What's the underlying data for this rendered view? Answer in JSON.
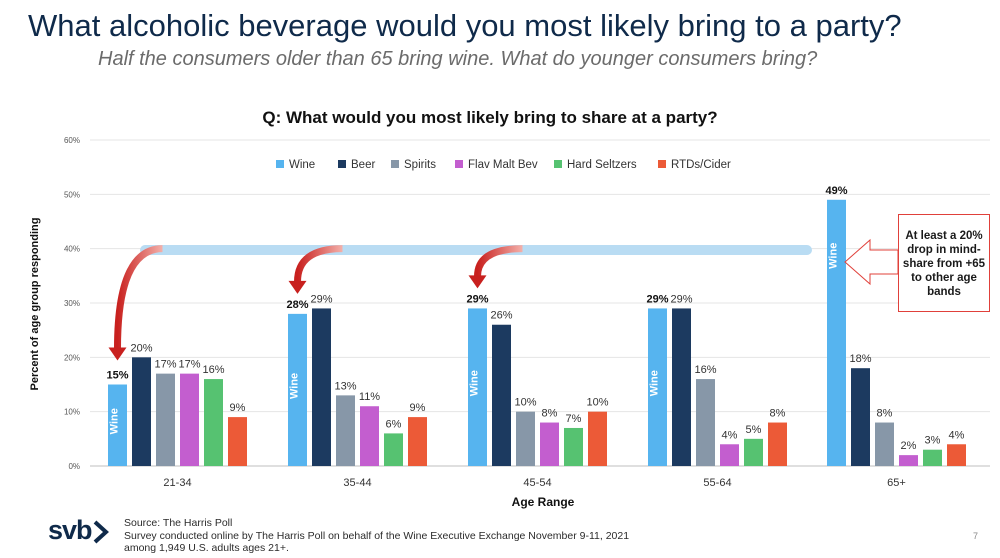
{
  "header": {
    "title": "What alcoholic beverage would you most likely bring to a party?",
    "subtitle": "Half the consumers older than 65 bring wine. What do younger consumers bring?"
  },
  "chart_data": {
    "type": "bar",
    "title": "Q: What would you most likely bring to share at a party?",
    "xlabel": "Age Range",
    "ylabel": "Percent of age group responding",
    "ylim": [
      0,
      60
    ],
    "yticks": [
      "0%",
      "10%",
      "20%",
      "30%",
      "40%",
      "50%",
      "60%"
    ],
    "legend_position": "top",
    "categories": [
      "21-34",
      "35-44",
      "45-54",
      "55-64",
      "65+"
    ],
    "series": [
      {
        "name": "Wine",
        "color": "#56b4ef",
        "values": [
          15,
          28,
          29,
          29,
          49
        ],
        "labels": [
          "15%",
          "28%",
          "29%",
          "29%",
          "49%"
        ],
        "inner_label": "Wine"
      },
      {
        "name": "Beer",
        "color": "#1c3a60",
        "values": [
          20,
          29,
          26,
          29,
          18
        ],
        "labels": [
          "20%",
          "29%",
          "26%",
          "29%",
          "18%"
        ]
      },
      {
        "name": "Spirits",
        "color": "#8797a8",
        "values": [
          17,
          13,
          10,
          16,
          8
        ],
        "labels": [
          "17%",
          "13%",
          "10%",
          "16%",
          "8%"
        ]
      },
      {
        "name": "Flav Malt Bev",
        "color": "#c35ecf",
        "values": [
          17,
          11,
          8,
          4,
          2
        ],
        "labels": [
          "17%",
          "11%",
          "8%",
          "4%",
          "2%"
        ]
      },
      {
        "name": "Hard Seltzers",
        "color": "#56c271",
        "values": [
          16,
          6,
          7,
          5,
          3
        ],
        "labels": [
          "16%",
          "6%",
          "7%",
          "5%",
          "3%"
        ]
      },
      {
        "name": "RTDs/Cider",
        "color": "#ec5a37",
        "values": [
          9,
          9,
          10,
          8,
          4
        ],
        "labels": [
          "9%",
          "9%",
          "10%",
          "8%",
          "4%"
        ]
      }
    ],
    "reference_line": {
      "value": 40,
      "color": "#b9dcf3"
    },
    "annotation": "At least a 20% drop in mind-share from +65 to other age bands"
  },
  "footer": {
    "source": "Source: The Harris Poll",
    "line2": "Survey conducted online by The Harris Poll on behalf of the Wine Executive Exchange November 9-11, 2021",
    "line3": "among 1,949 U.S. adults ages 21+.",
    "logo": "svb",
    "page": "7"
  }
}
